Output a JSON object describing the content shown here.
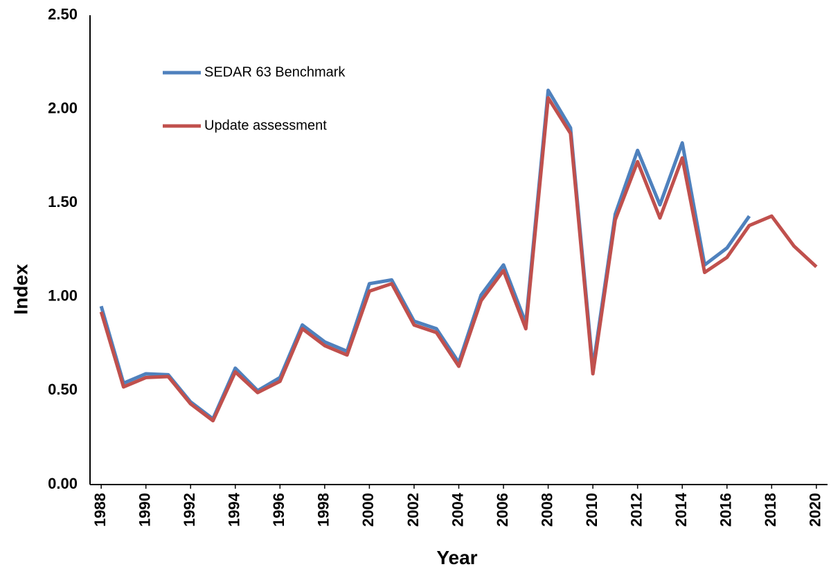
{
  "chart_data": {
    "type": "line",
    "xlabel": "Year",
    "ylabel": "Index",
    "x": [
      1988,
      1989,
      1990,
      1991,
      1992,
      1993,
      1994,
      1995,
      1996,
      1997,
      1998,
      1999,
      2000,
      2001,
      2002,
      2003,
      2004,
      2005,
      2006,
      2007,
      2008,
      2009,
      2010,
      2011,
      2012,
      2013,
      2014,
      2015,
      2016,
      2017,
      2018,
      2019,
      2020
    ],
    "series": [
      {
        "name": "SEDAR 63 Benchmark",
        "color": "#4f81bd",
        "values": [
          0.95,
          0.54,
          0.59,
          0.585,
          0.44,
          0.35,
          0.62,
          0.5,
          0.57,
          0.85,
          0.76,
          0.71,
          1.07,
          1.09,
          0.87,
          0.83,
          0.65,
          1.01,
          1.17,
          0.86,
          2.1,
          1.9,
          0.62,
          1.44,
          1.78,
          1.49,
          1.82,
          1.17,
          1.26,
          1.43,
          null,
          null,
          null
        ]
      },
      {
        "name": "Update assessment",
        "color": "#c0504d",
        "values": [
          0.92,
          0.52,
          0.57,
          0.575,
          0.43,
          0.34,
          0.6,
          0.49,
          0.55,
          0.83,
          0.74,
          0.69,
          1.03,
          1.07,
          0.85,
          0.81,
          0.63,
          0.98,
          1.14,
          0.83,
          2.06,
          1.87,
          0.59,
          1.41,
          1.72,
          1.42,
          1.74,
          1.13,
          1.21,
          1.38,
          1.43,
          1.27,
          1.16
        ]
      }
    ],
    "xlim": [
      1987.5,
      2020.5
    ],
    "xticks": [
      1988,
      1990,
      1992,
      1994,
      1996,
      1998,
      2000,
      2002,
      2004,
      2006,
      2008,
      2010,
      2012,
      2014,
      2016,
      2018,
      2020
    ],
    "ylim": [
      0,
      2.5
    ],
    "yticks": [
      {
        "value": 0,
        "label": "0.00"
      },
      {
        "value": 0.5,
        "label": "0.50"
      },
      {
        "value": 1,
        "label": "1.00"
      },
      {
        "value": 1.5,
        "label": "1.50"
      },
      {
        "value": 2,
        "label": "2.00"
      },
      {
        "value": 2.5,
        "label": "2.50"
      }
    ],
    "grid": false
  }
}
